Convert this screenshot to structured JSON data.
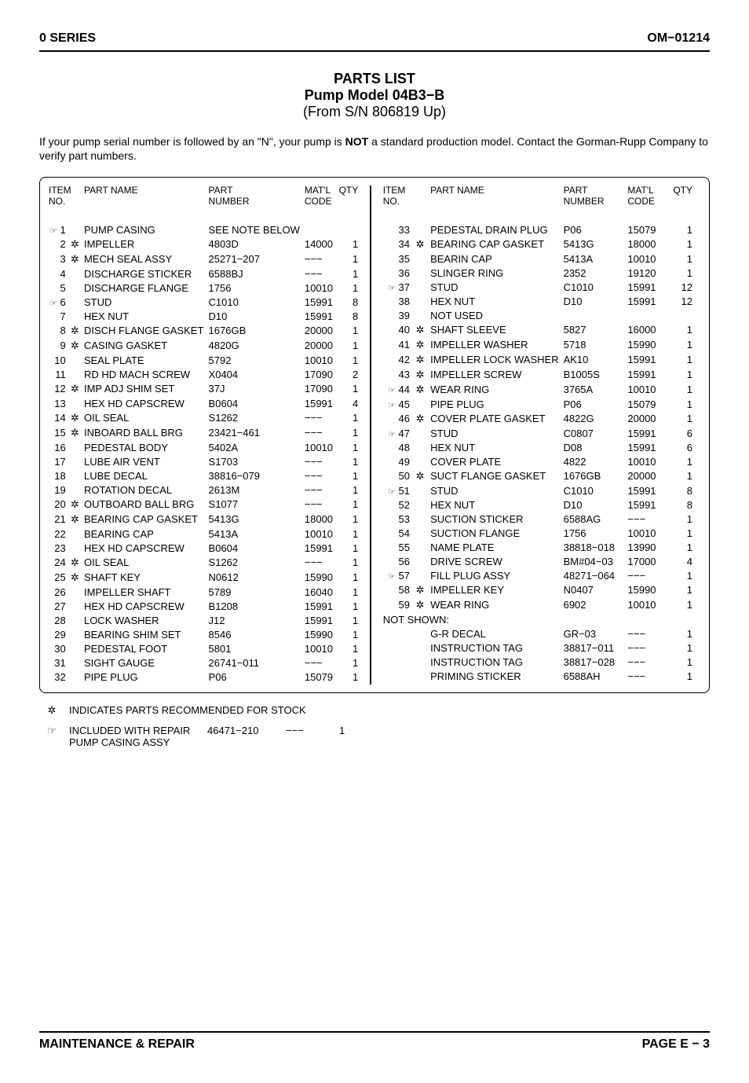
{
  "header": {
    "left": "0 SERIES",
    "right": "OM−01214"
  },
  "title": {
    "l1": "PARTS LIST",
    "l2": "Pump Model 04B3−B",
    "l3": "(From S/N 806819 Up)"
  },
  "note_pre": "If your pump serial number is followed by an \"N\", your pump is ",
  "note_bold": "NOT",
  "note_post": " a standard production model. Contact the Gorman-Rupp Company to verify part numbers.",
  "headers": {
    "item": "ITEM\nNO.",
    "name": "PART NAME",
    "part": "PART\nNUMBER",
    "matl": "MAT'L\nCODE",
    "qty": "QTY"
  },
  "left": [
    {
      "n": "1",
      "m": "☞",
      "name": "PUMP CASING",
      "part": "SEE NOTE BELOW",
      "matl": "",
      "qty": ""
    },
    {
      "n": "2",
      "m": "✲",
      "name": "IMPELLER",
      "part": "4803D",
      "matl": "14000",
      "qty": "1"
    },
    {
      "n": "3",
      "m": "✲",
      "name": "MECH SEAL ASSY",
      "part": "25271−207",
      "matl": "−−−",
      "qty": "1"
    },
    {
      "n": "4",
      "m": "",
      "name": "DISCHARGE STICKER",
      "part": "6588BJ",
      "matl": "−−−",
      "qty": "1"
    },
    {
      "n": "5",
      "m": "",
      "name": "DISCHARGE FLANGE",
      "part": "1756",
      "matl": "10010",
      "qty": "1"
    },
    {
      "n": "6",
      "m": "☞",
      "name": "STUD",
      "part": "C1010",
      "matl": "15991",
      "qty": "8"
    },
    {
      "n": "7",
      "m": "",
      "name": "HEX NUT",
      "part": "D10",
      "matl": "15991",
      "qty": "8"
    },
    {
      "n": "8",
      "m": "✲",
      "name": "DISCH FLANGE GASKET",
      "part": "1676GB",
      "matl": "20000",
      "qty": "1"
    },
    {
      "n": "9",
      "m": "✲",
      "name": "CASING GASKET",
      "part": "4820G",
      "matl": "20000",
      "qty": "1"
    },
    {
      "n": "10",
      "m": "",
      "name": "SEAL PLATE",
      "part": "5792",
      "matl": "10010",
      "qty": "1"
    },
    {
      "n": "11",
      "m": "",
      "name": "RD HD MACH SCREW",
      "part": "X0404",
      "matl": "17090",
      "qty": "2"
    },
    {
      "n": "12",
      "m": "✲",
      "name": "IMP ADJ SHIM SET",
      "part": "37J",
      "matl": "17090",
      "qty": "1"
    },
    {
      "n": "13",
      "m": "",
      "name": "HEX HD CAPSCREW",
      "part": "B0604",
      "matl": "15991",
      "qty": "4"
    },
    {
      "n": "14",
      "m": "✲",
      "name": "OIL SEAL",
      "part": "S1262",
      "matl": "−−−",
      "qty": "1"
    },
    {
      "n": "15",
      "m": "✲",
      "name": "INBOARD BALL BRG",
      "part": "23421−461",
      "matl": "−−−",
      "qty": "1"
    },
    {
      "n": "16",
      "m": "",
      "name": "PEDESTAL BODY",
      "part": "5402A",
      "matl": "10010",
      "qty": "1"
    },
    {
      "n": "17",
      "m": "",
      "name": "LUBE AIR VENT",
      "part": "S1703",
      "matl": "−−−",
      "qty": "1"
    },
    {
      "n": "18",
      "m": "",
      "name": "LUBE DECAL",
      "part": "38816−079",
      "matl": "−−−",
      "qty": "1"
    },
    {
      "n": "19",
      "m": "",
      "name": "ROTATION DECAL",
      "part": "2613M",
      "matl": "−−−",
      "qty": "1"
    },
    {
      "n": "20",
      "m": "✲",
      "name": "OUTBOARD BALL BRG",
      "part": "S1077",
      "matl": "−−−",
      "qty": "1"
    },
    {
      "n": "21",
      "m": "✲",
      "name": "BEARING CAP GASKET",
      "part": "5413G",
      "matl": "18000",
      "qty": "1"
    },
    {
      "n": "22",
      "m": "",
      "name": "BEARING CAP",
      "part": "5413A",
      "matl": "10010",
      "qty": "1"
    },
    {
      "n": "23",
      "m": "",
      "name": "HEX HD CAPSCREW",
      "part": "B0604",
      "matl": "15991",
      "qty": "1"
    },
    {
      "n": "24",
      "m": "✲",
      "name": "OIL SEAL",
      "part": "S1262",
      "matl": "−−−",
      "qty": "1"
    },
    {
      "n": "25",
      "m": "✲",
      "name": "SHAFT KEY",
      "part": "N0612",
      "matl": "15990",
      "qty": "1"
    },
    {
      "n": "26",
      "m": "",
      "name": "IMPELLER SHAFT",
      "part": "5789",
      "matl": "16040",
      "qty": "1"
    },
    {
      "n": "27",
      "m": "",
      "name": "HEX HD CAPSCREW",
      "part": "B1208",
      "matl": "15991",
      "qty": "1"
    },
    {
      "n": "28",
      "m": "",
      "name": "LOCK WASHER",
      "part": "J12",
      "matl": "15991",
      "qty": "1"
    },
    {
      "n": "29",
      "m": "",
      "name": "BEARING SHIM SET",
      "part": "8546",
      "matl": "15990",
      "qty": "1"
    },
    {
      "n": "30",
      "m": "",
      "name": "PEDESTAL FOOT",
      "part": "5801",
      "matl": "10010",
      "qty": "1"
    },
    {
      "n": "31",
      "m": "",
      "name": "SIGHT GAUGE",
      "part": "26741−011",
      "matl": "−−−",
      "qty": "1"
    },
    {
      "n": "32",
      "m": "",
      "name": "PIPE PLUG",
      "part": "P06",
      "matl": "15079",
      "qty": "1"
    }
  ],
  "right": [
    {
      "n": "33",
      "m": "",
      "name": "PEDESTAL DRAIN PLUG",
      "part": "P06",
      "matl": "15079",
      "qty": "1"
    },
    {
      "n": "34",
      "m": "✲",
      "name": "BEARING CAP GASKET",
      "part": "5413G",
      "matl": "18000",
      "qty": "1"
    },
    {
      "n": "35",
      "m": "",
      "name": "BEARIN CAP",
      "part": "5413A",
      "matl": "10010",
      "qty": "1"
    },
    {
      "n": "36",
      "m": "",
      "name": "SLINGER RING",
      "part": "2352",
      "matl": "19120",
      "qty": "1"
    },
    {
      "n": "37",
      "m": "☞",
      "name": "STUD",
      "part": "C1010",
      "matl": "15991",
      "qty": "12"
    },
    {
      "n": "38",
      "m": "",
      "name": "HEX NUT",
      "part": "D10",
      "matl": "15991",
      "qty": "12"
    },
    {
      "n": "39",
      "m": "",
      "name": "NOT USED",
      "part": "",
      "matl": "",
      "qty": ""
    },
    {
      "n": "40",
      "m": "✲",
      "name": "SHAFT SLEEVE",
      "part": "5827",
      "matl": "16000",
      "qty": "1"
    },
    {
      "n": "41",
      "m": "✲",
      "name": "IMPELLER WASHER",
      "part": "5718",
      "matl": "15990",
      "qty": "1"
    },
    {
      "n": "42",
      "m": "✲",
      "name": "IMPELLER LOCK WASHER",
      "part": "AK10",
      "matl": "15991",
      "qty": "1"
    },
    {
      "n": "43",
      "m": "✲",
      "name": "IMPELLER SCREW",
      "part": "B1005S",
      "matl": "15991",
      "qty": "1"
    },
    {
      "n": "44",
      "m": "☞✲",
      "name": "WEAR RING",
      "part": "3765A",
      "matl": "10010",
      "qty": "1"
    },
    {
      "n": "45",
      "m": "☞",
      "name": "PIPE PLUG",
      "part": "P06",
      "matl": "15079",
      "qty": "1"
    },
    {
      "n": "46",
      "m": "✲",
      "name": "COVER PLATE GASKET",
      "part": "4822G",
      "matl": "20000",
      "qty": "1"
    },
    {
      "n": "47",
      "m": "☞",
      "name": "STUD",
      "part": "C0807",
      "matl": "15991",
      "qty": "6"
    },
    {
      "n": "48",
      "m": "",
      "name": "HEX NUT",
      "part": "D08",
      "matl": "15991",
      "qty": "6"
    },
    {
      "n": "49",
      "m": "",
      "name": "COVER PLATE",
      "part": "4822",
      "matl": "10010",
      "qty": "1"
    },
    {
      "n": "50",
      "m": "✲",
      "name": "SUCT FLANGE GASKET",
      "part": "1676GB",
      "matl": "20000",
      "qty": "1"
    },
    {
      "n": "51",
      "m": "☞",
      "name": "STUD",
      "part": "C1010",
      "matl": "15991",
      "qty": "8"
    },
    {
      "n": "52",
      "m": "",
      "name": "HEX NUT",
      "part": "D10",
      "matl": "15991",
      "qty": "8"
    },
    {
      "n": "53",
      "m": "",
      "name": "SUCTION STICKER",
      "part": "6588AG",
      "matl": "−−−",
      "qty": "1"
    },
    {
      "n": "54",
      "m": "",
      "name": "SUCTION FLANGE",
      "part": "1756",
      "matl": "10010",
      "qty": "1"
    },
    {
      "n": "55",
      "m": "",
      "name": "NAME PLATE",
      "part": "38818−018",
      "matl": "13990",
      "qty": "1"
    },
    {
      "n": "56",
      "m": "",
      "name": "DRIVE SCREW",
      "part": "BM#04−03",
      "matl": "17000",
      "qty": "4"
    },
    {
      "n": "57",
      "m": "☞",
      "name": "FILL PLUG ASSY",
      "part": "48271−064",
      "matl": "−−−",
      "qty": "1"
    },
    {
      "n": "58",
      "m": "✲",
      "name": "IMPELLER KEY",
      "part": "N0407",
      "matl": "15990",
      "qty": "1"
    },
    {
      "n": "59",
      "m": "✲",
      "name": "WEAR RING",
      "part": "6902",
      "matl": "10010",
      "qty": "1"
    },
    {
      "n": "",
      "m": "",
      "name": "NOT SHOWN:",
      "part": "",
      "matl": "",
      "qty": "",
      "ns": true
    },
    {
      "n": "",
      "m": "",
      "name": "G-R DECAL",
      "part": "GR−03",
      "matl": "−−−",
      "qty": "1"
    },
    {
      "n": "",
      "m": "",
      "name": "INSTRUCTION TAG",
      "part": "38817−011",
      "matl": "−−−",
      "qty": "1"
    },
    {
      "n": "",
      "m": "",
      "name": "INSTRUCTION TAG",
      "part": "38817−028",
      "matl": "−−−",
      "qty": "1"
    },
    {
      "n": "",
      "m": "",
      "name": "PRIMING STICKER",
      "part": "6588AH",
      "matl": "−−−",
      "qty": "1"
    }
  ],
  "legend1": "INDICATES PARTS RECOMMENDED FOR STOCK",
  "legend2_a": "INCLUDED WITH REPAIR",
  "legend2_b": "46471−210",
  "legend2_c": "−−−",
  "legend2_d": "1",
  "legend2_e": "PUMP CASING ASSY",
  "footer": {
    "left": "MAINTENANCE & REPAIR",
    "right": "PAGE E − 3"
  }
}
